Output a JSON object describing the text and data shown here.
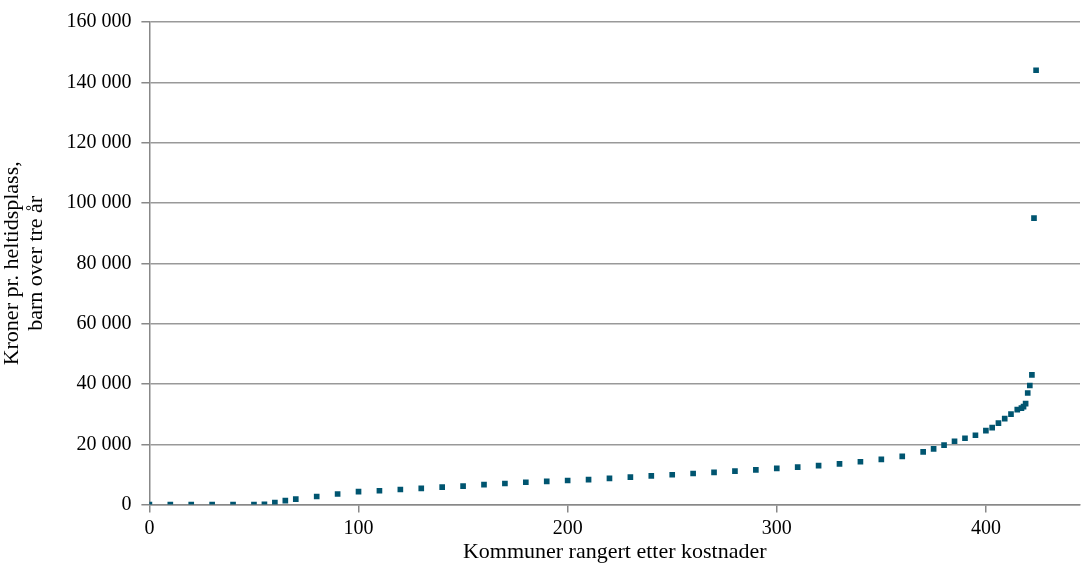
{
  "chart_data": {
    "type": "scatter",
    "xlabel": "Kommuner rangert etter kostnader",
    "ylabel": "Kroner pr. heltidsplass,\nbarn over tre år",
    "marker": "square",
    "grid": "y",
    "legend": false,
    "xlim": [
      0,
      445
    ],
    "xticks": [
      0,
      100,
      200,
      300,
      400
    ],
    "ylim": [
      0,
      160000
    ],
    "yticks": [
      {
        "value": 0,
        "label": "0"
      },
      {
        "value": 20000,
        "label": "20 000"
      },
      {
        "value": 40000,
        "label": "40 000"
      },
      {
        "value": 60000,
        "label": "60 000"
      },
      {
        "value": 80000,
        "label": "80 000"
      },
      {
        "value": 100000,
        "label": "100 000"
      },
      {
        "value": 120000,
        "label": "120 000"
      },
      {
        "value": 140000,
        "label": "140 000"
      },
      {
        "value": 160000,
        "label": "160 000"
      }
    ],
    "series": [
      {
        "color": "#005570",
        "x": [
          0,
          10,
          20,
          30,
          40,
          50,
          55,
          60,
          65,
          70,
          80,
          90,
          100,
          110,
          120,
          130,
          140,
          150,
          160,
          170,
          180,
          190,
          200,
          210,
          220,
          230,
          240,
          250,
          260,
          270,
          280,
          290,
          300,
          310,
          320,
          330,
          340,
          350,
          360,
          370,
          375,
          380,
          385,
          390,
          395,
          400,
          403,
          406,
          409,
          412,
          415,
          417,
          418,
          419,
          420,
          421,
          422,
          423,
          424
        ],
        "values": [
          0,
          0,
          0,
          0,
          0,
          0,
          100,
          700,
          1300,
          1800,
          2700,
          3500,
          4300,
          4600,
          5000,
          5400,
          5800,
          6100,
          6600,
          7000,
          7400,
          7700,
          8000,
          8300,
          8700,
          9100,
          9500,
          9900,
          10300,
          10700,
          11100,
          11500,
          12000,
          12400,
          12900,
          13500,
          14200,
          15000,
          16000,
          17500,
          18500,
          19700,
          21000,
          22000,
          23000,
          24500,
          25500,
          27000,
          28500,
          30000,
          31500,
          32000,
          32500,
          33500,
          37000,
          39500,
          43000,
          95000,
          144000
        ]
      }
    ]
  }
}
